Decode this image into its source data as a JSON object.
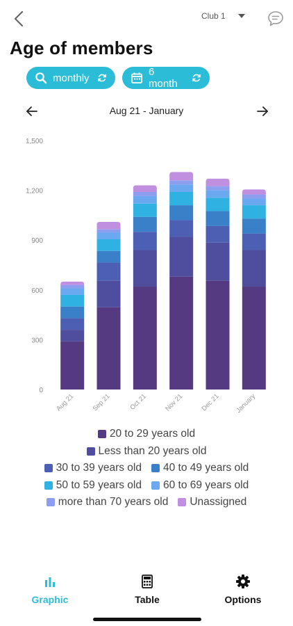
{
  "header": {
    "club_label": "Club 1",
    "title": "Age of members"
  },
  "filters": {
    "frequency_label": "monthly",
    "range_label": "6 month"
  },
  "period": {
    "label": "Aug 21 - January"
  },
  "colors": {
    "accent": "#2bbcd8"
  },
  "chart_data": {
    "type": "bar",
    "stacked": true,
    "categories": [
      "Aug 21",
      "Sep 21",
      "Oct 21",
      "Nov 21",
      "Dec 21",
      "January"
    ],
    "ylim": [
      0,
      1500
    ],
    "yticks": [
      "0",
      "300",
      "600",
      "900",
      "1,200",
      "1,500"
    ],
    "grid": false,
    "legend_position": "bottom",
    "series": [
      {
        "name": "20 to 29 years old",
        "color": "#553a82",
        "values": [
          290,
          495,
          620,
          680,
          655,
          620
        ]
      },
      {
        "name": "Less than 20 years old",
        "color": "#4f4d9d",
        "values": [
          70,
          160,
          220,
          240,
          230,
          220
        ]
      },
      {
        "name": "30 to 39 years old",
        "color": "#4c5fb3",
        "values": [
          70,
          110,
          110,
          100,
          100,
          100
        ]
      },
      {
        "name": "40 to 49 years old",
        "color": "#3a80c8",
        "values": [
          70,
          70,
          90,
          90,
          90,
          90
        ]
      },
      {
        "name": "50 to 59 years old",
        "color": "#2fb1e1",
        "values": [
          70,
          70,
          80,
          80,
          80,
          80
        ]
      },
      {
        "name": "60 to 69 years old",
        "color": "#6aa9f0",
        "values": [
          40,
          40,
          45,
          45,
          45,
          40
        ]
      },
      {
        "name": "more than 70 years old",
        "color": "#8d9ef0",
        "values": [
          20,
          20,
          25,
          25,
          25,
          25
        ]
      },
      {
        "name": "Unassigned",
        "color": "#c08fe0",
        "values": [
          20,
          45,
          40,
          50,
          45,
          30
        ]
      }
    ]
  },
  "bottom_nav": {
    "graphic_label": "Graphic",
    "table_label": "Table",
    "options_label": "Options"
  }
}
